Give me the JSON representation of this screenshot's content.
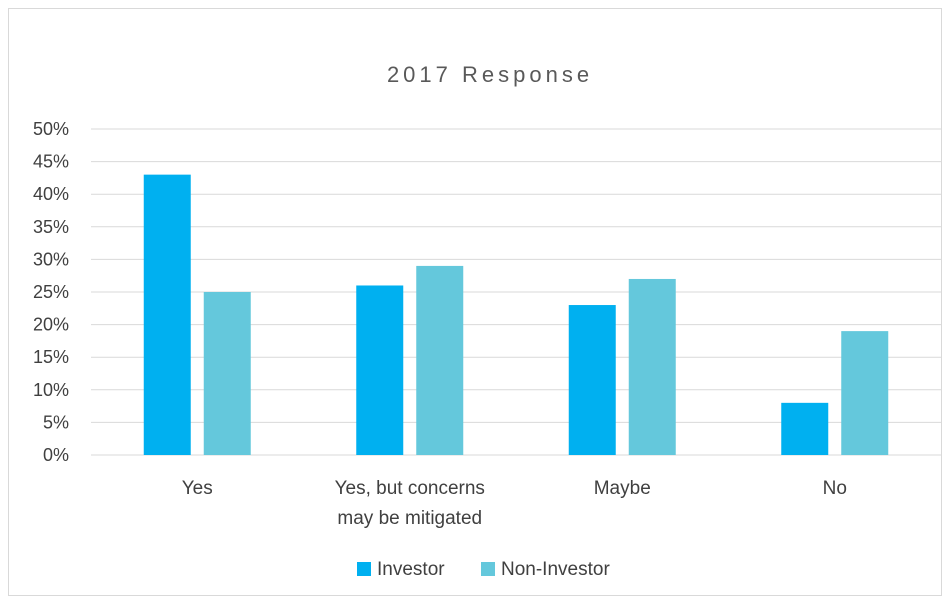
{
  "chart_data": {
    "type": "bar",
    "title": "2017 Response",
    "categories": [
      [
        "Yes"
      ],
      [
        "Yes, but concerns",
        "may be mitigated"
      ],
      [
        "Maybe"
      ],
      [
        "No"
      ]
    ],
    "series": [
      {
        "name": "Investor",
        "color": "#00b0f0",
        "values": [
          43,
          26,
          23,
          8
        ]
      },
      {
        "name": "Non-Investor",
        "color": "#64c8dc",
        "values": [
          25,
          29,
          27,
          19
        ]
      }
    ],
    "ylim": [
      0,
      50
    ],
    "yticks": [
      "0%",
      "5%",
      "10%",
      "15%",
      "20%",
      "25%",
      "30%",
      "35%",
      "40%",
      "45%",
      "50%"
    ],
    "grid": true,
    "legend_position": "bottom"
  }
}
